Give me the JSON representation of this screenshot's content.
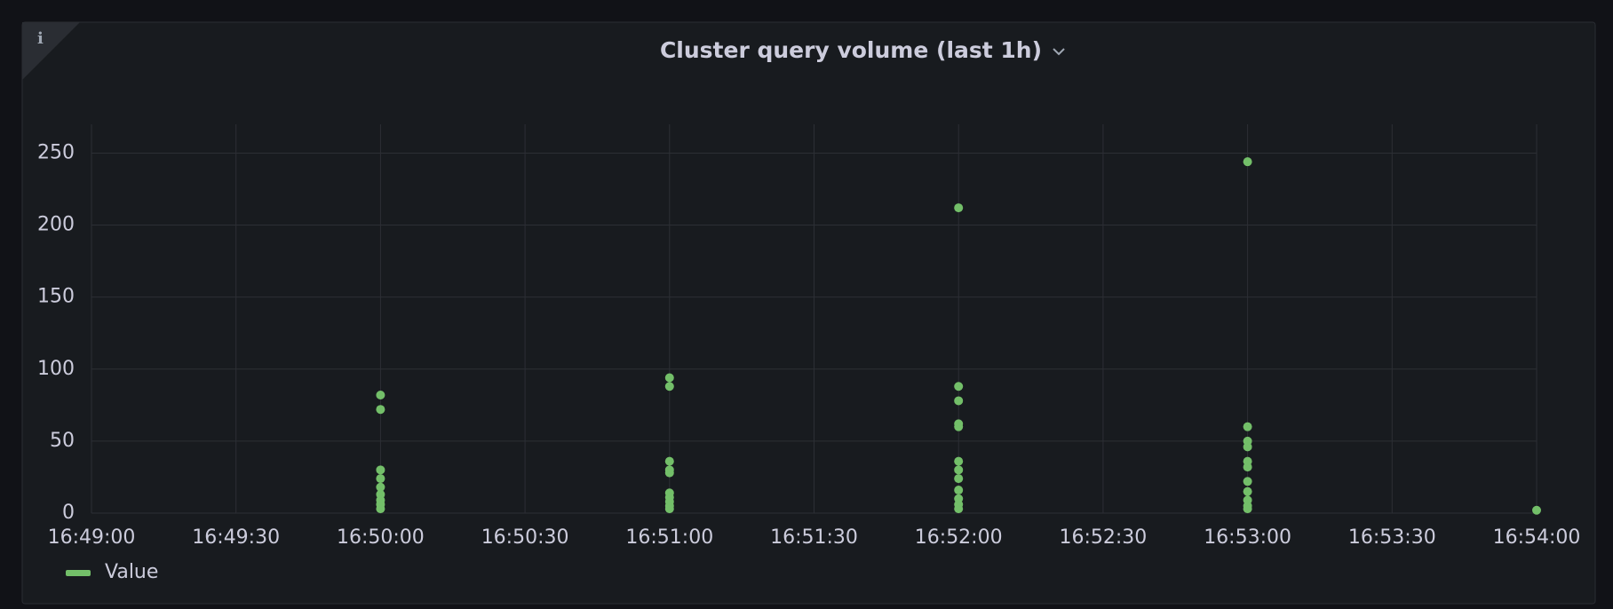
{
  "chart_data": {
    "type": "scatter",
    "title": "Cluster query volume (last 1h)",
    "x": [
      "16:50:00",
      "16:50:00",
      "16:50:00",
      "16:50:00",
      "16:50:00",
      "16:50:00",
      "16:50:00",
      "16:50:00",
      "16:50:00",
      "16:51:00",
      "16:51:00",
      "16:51:00",
      "16:51:00",
      "16:51:00",
      "16:51:00",
      "16:51:00",
      "16:51:00",
      "16:51:00",
      "16:51:00",
      "16:52:00",
      "16:52:00",
      "16:52:00",
      "16:52:00",
      "16:52:00",
      "16:52:00",
      "16:52:00",
      "16:52:00",
      "16:52:00",
      "16:52:00",
      "16:52:00",
      "16:52:00",
      "16:53:00",
      "16:53:00",
      "16:53:00",
      "16:53:00",
      "16:53:00",
      "16:53:00",
      "16:53:00",
      "16:53:00",
      "16:53:00",
      "16:53:00",
      "16:53:00",
      "16:54:00"
    ],
    "series": [
      {
        "name": "Value",
        "color": "#73bf69",
        "values": [
          82,
          72,
          30,
          24,
          18,
          13,
          9,
          6,
          3,
          94,
          88,
          36,
          30,
          28,
          14,
          11,
          8,
          5,
          3,
          212,
          88,
          78,
          62,
          60,
          36,
          30,
          24,
          16,
          10,
          6,
          3,
          244,
          60,
          50,
          46,
          36,
          32,
          22,
          15,
          9,
          5,
          3,
          2
        ]
      }
    ],
    "xlim": [
      "16:49:00",
      "16:54:00"
    ],
    "xticks": [
      "16:49:00",
      "16:49:30",
      "16:50:00",
      "16:50:30",
      "16:51:00",
      "16:51:30",
      "16:52:00",
      "16:52:30",
      "16:53:00",
      "16:53:30",
      "16:54:00"
    ],
    "ylim": [
      0,
      270
    ],
    "yticks": [
      0,
      50,
      100,
      150,
      200,
      250
    ],
    "grid": true,
    "legend": "bottom-left"
  }
}
